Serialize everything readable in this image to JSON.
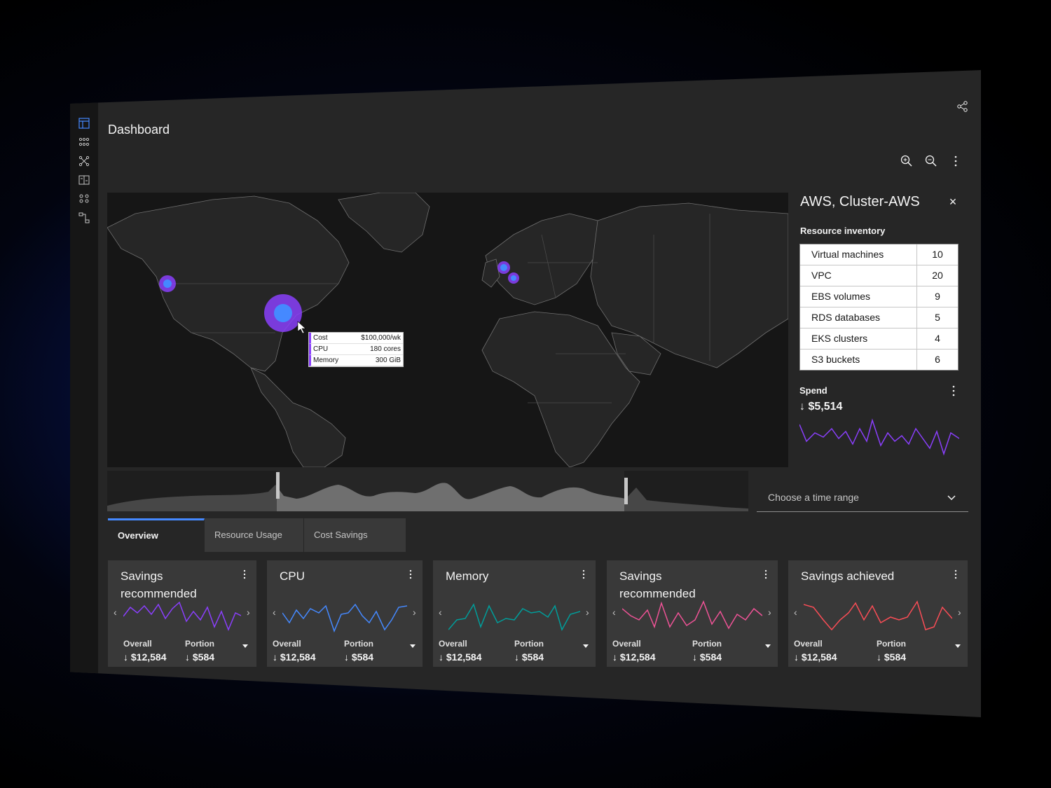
{
  "page": {
    "title": "Dashboard"
  },
  "rail": {
    "icons": [
      "dashboard-icon",
      "network-icon",
      "topology-icon",
      "report-icon",
      "group-icon",
      "flow-icon"
    ]
  },
  "toolbar": {
    "icons": [
      "share-icon",
      "zoom-in-icon",
      "zoom-out-icon",
      "overflow-menu-icon"
    ]
  },
  "map": {
    "tooltip": {
      "rows": [
        {
          "label": "Cost",
          "value": "$100,000/wk"
        },
        {
          "label": "CPU",
          "value": "180 cores"
        },
        {
          "label": "Memory",
          "value": "300 GiB"
        }
      ]
    }
  },
  "side_panel": {
    "title": "AWS, Cluster-AWS",
    "close": "×",
    "inventory_label": "Resource inventory",
    "inventory": [
      {
        "name": "Virtual machines",
        "value": "10"
      },
      {
        "name": "VPC",
        "value": "20"
      },
      {
        "name": "EBS volumes",
        "value": "9"
      },
      {
        "name": "RDS databases",
        "value": "5"
      },
      {
        "name": "EKS clusters",
        "value": "4"
      },
      {
        "name": "S3 buckets",
        "value": "6"
      }
    ],
    "spend_label": "Spend",
    "spend_value": "↓ $5,514",
    "spend_color": "#8a3ffc"
  },
  "time_range": {
    "label": "Choose a time range"
  },
  "tabs": [
    {
      "label": "Overview",
      "active": true
    },
    {
      "label": "Resource Usage",
      "active": false
    },
    {
      "label": "Cost Savings",
      "active": false
    }
  ],
  "cards": [
    {
      "title": "Savings recommended",
      "color": "#8a3ffc",
      "overall_label": "Overall",
      "overall_value": "↓ $12,584",
      "portion_label": "Portion",
      "portion_value": "↓ $584"
    },
    {
      "title": "CPU",
      "color": "#4589ff",
      "overall_label": "Overall",
      "overall_value": "↓ $12,584",
      "portion_label": "Portion",
      "portion_value": "↓ $584"
    },
    {
      "title": "Memory",
      "color": "#009d9a",
      "overall_label": "Overall",
      "overall_value": "↓ $12,584",
      "portion_label": "Portion",
      "portion_value": "↓ $584"
    },
    {
      "title": "Savings recommended",
      "color": "#ee5396",
      "overall_label": "Overall",
      "overall_value": "↓ $12,584",
      "portion_label": "Portion",
      "portion_value": "↓ $584"
    },
    {
      "title": "Savings achieved",
      "color": "#fa4d56",
      "overall_label": "Overall",
      "overall_value": "↓ $12,584",
      "portion_label": "Portion",
      "portion_value": "↓ $584"
    }
  ],
  "colors": {
    "accent": "#4589ff",
    "bubble": "#8a3ffc",
    "background": "#262626"
  }
}
